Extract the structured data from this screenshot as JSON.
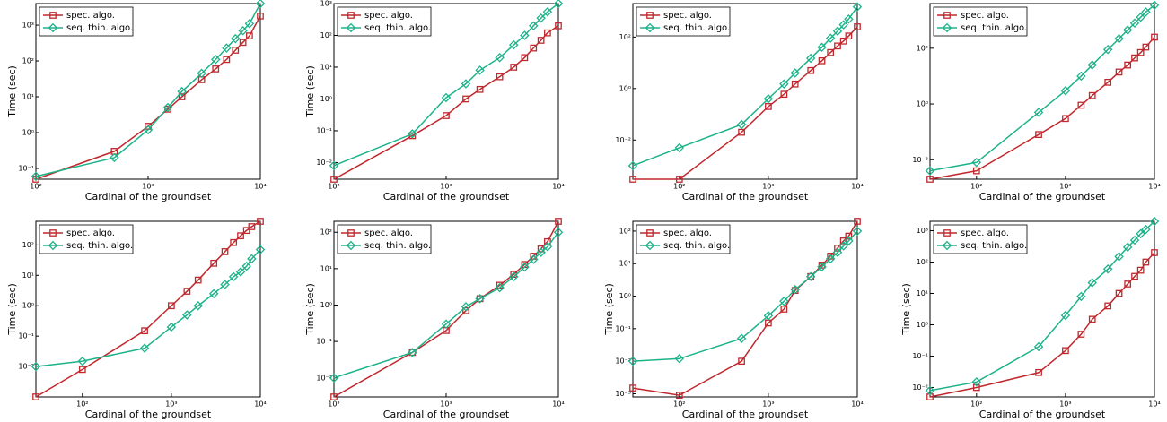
{
  "chart_data": [
    {
      "type": "line",
      "xscale": "log",
      "yscale": "log",
      "xlabel": "Cardinal of the groundset",
      "ylabel": "Time (sec)",
      "legend": "upper left",
      "x": [
        100,
        500,
        1000,
        1500,
        2000,
        3000,
        4000,
        5000,
        6000,
        7000,
        8000,
        10000
      ],
      "xlim": [
        100,
        10000
      ],
      "xticks": [
        {
          "value": 100,
          "label": "10²"
        },
        {
          "value": 1000,
          "label": "10³"
        },
        {
          "value": 10000,
          "label": "10⁴"
        }
      ],
      "ylim": [
        0.05,
        4000
      ],
      "yticks": [
        {
          "value": 0.1,
          "label": "10⁻¹"
        },
        {
          "value": 1,
          "label": "10⁰"
        },
        {
          "value": 10,
          "label": "10¹"
        },
        {
          "value": 100,
          "label": "10²"
        },
        {
          "value": 1000,
          "label": "10³"
        }
      ],
      "series": [
        {
          "name": "spec. algo.",
          "color": "#c0282d",
          "marker": "square",
          "values": [
            0.05,
            0.3,
            1.5,
            4.5,
            10,
            30,
            60,
            110,
            200,
            330,
            500,
            1800
          ]
        },
        {
          "name": "seq. thin. algo.",
          "color": "#1db38a",
          "marker": "diamond",
          "values": [
            0.06,
            0.2,
            1.2,
            5,
            14,
            45,
            110,
            230,
            420,
            700,
            1100,
            4000
          ]
        }
      ]
    },
    {
      "type": "line",
      "xscale": "log",
      "yscale": "log",
      "xlabel": "Cardinal of the groundset",
      "ylabel": "Time (sec)",
      "legend": "upper left",
      "x": [
        100,
        500,
        1000,
        1500,
        2000,
        3000,
        4000,
        5000,
        6000,
        7000,
        8000,
        10000
      ],
      "xlim": [
        100,
        10000
      ],
      "xticks": [
        {
          "value": 100,
          "label": "10²"
        },
        {
          "value": 1000,
          "label": "10³"
        },
        {
          "value": 10000,
          "label": "10⁴"
        }
      ],
      "ylim": [
        0.003,
        1000
      ],
      "yticks": [
        {
          "value": 0.01,
          "label": "10⁻²"
        },
        {
          "value": 0.1,
          "label": "10⁻¹"
        },
        {
          "value": 1,
          "label": "10⁰"
        },
        {
          "value": 10,
          "label": "10¹"
        },
        {
          "value": 100,
          "label": "10²"
        },
        {
          "value": 1000,
          "label": "10³"
        }
      ],
      "series": [
        {
          "name": "spec. algo.",
          "color": "#c0282d",
          "marker": "square",
          "values": [
            0.003,
            0.07,
            0.3,
            1,
            2,
            5,
            10,
            20,
            40,
            70,
            120,
            200
          ]
        },
        {
          "name": "seq. thin. algo.",
          "color": "#1db38a",
          "marker": "diamond",
          "values": [
            0.008,
            0.08,
            1.1,
            3,
            8,
            20,
            50,
            100,
            200,
            350,
            550,
            1000
          ]
        }
      ]
    },
    {
      "type": "line",
      "xscale": "log",
      "yscale": "log",
      "xlabel": "Cardinal of the groundset",
      "legend": "upper left",
      "x": [
        30,
        100,
        500,
        1000,
        1500,
        2000,
        3000,
        4000,
        5000,
        6000,
        7000,
        8000,
        10000
      ],
      "xlim": [
        30,
        10000
      ],
      "xticks": [
        {
          "value": 100,
          "label": "10²"
        },
        {
          "value": 1000,
          "label": "10³"
        },
        {
          "value": 10000,
          "label": "10⁴"
        }
      ],
      "ylim": [
        0.0003,
        2000
      ],
      "yticks": [
        {
          "value": 0.01,
          "label": "10⁻²"
        },
        {
          "value": 1,
          "label": "10⁰"
        },
        {
          "value": 100,
          "label": "10²"
        }
      ],
      "series": [
        {
          "name": "spec. algo.",
          "color": "#c0282d",
          "marker": "square",
          "values": [
            0.0003,
            0.0003,
            0.02,
            0.2,
            0.6,
            1.5,
            5,
            12,
            25,
            45,
            70,
            110,
            250
          ]
        },
        {
          "name": "seq. thin. algo.",
          "color": "#1db38a",
          "marker": "diamond",
          "values": [
            0.001,
            0.005,
            0.04,
            0.4,
            1.5,
            4,
            15,
            40,
            90,
            170,
            300,
            500,
            1500
          ]
        }
      ]
    },
    {
      "type": "line",
      "xscale": "log",
      "yscale": "log",
      "xlabel": "Cardinal of the groundset",
      "legend": "upper left",
      "x": [
        30,
        100,
        500,
        1000,
        1500,
        2000,
        3000,
        4000,
        5000,
        6000,
        7000,
        8000,
        10000
      ],
      "xlim": [
        30,
        10000
      ],
      "xticks": [
        {
          "value": 100,
          "label": "10²"
        },
        {
          "value": 1000,
          "label": "10³"
        },
        {
          "value": 10000,
          "label": "10⁴"
        }
      ],
      "ylim": [
        0.002,
        4000
      ],
      "yticks": [
        {
          "value": 0.01,
          "label": "10⁻²"
        },
        {
          "value": 1,
          "label": "10⁰"
        },
        {
          "value": 100,
          "label": "10²"
        }
      ],
      "series": [
        {
          "name": "spec. algo.",
          "color": "#c0282d",
          "marker": "square",
          "values": [
            0.002,
            0.004,
            0.08,
            0.3,
            0.9,
            2,
            6,
            14,
            25,
            45,
            70,
            110,
            250
          ]
        },
        {
          "name": "seq. thin. algo.",
          "color": "#1db38a",
          "marker": "diamond",
          "values": [
            0.004,
            0.008,
            0.5,
            3,
            10,
            25,
            90,
            220,
            450,
            800,
            1300,
            2000,
            3500
          ]
        }
      ]
    },
    {
      "type": "line",
      "xscale": "log",
      "yscale": "log",
      "xlabel": "Cardinal of the groundset",
      "ylabel": "Time (sec)",
      "legend": "upper left",
      "x": [
        30,
        100,
        500,
        1000,
        1500,
        2000,
        3000,
        4000,
        5000,
        6000,
        7000,
        8000,
        10000
      ],
      "xlim": [
        30,
        10000
      ],
      "xticks": [
        {
          "value": 100,
          "label": "10²"
        },
        {
          "value": 1000,
          "label": "10³"
        },
        {
          "value": 10000,
          "label": "10⁴"
        }
      ],
      "ylim": [
        0.001,
        600
      ],
      "yticks": [
        {
          "value": 0.01,
          "label": "10⁻²"
        },
        {
          "value": 0.1,
          "label": "10⁻¹"
        },
        {
          "value": 1,
          "label": "10⁰"
        },
        {
          "value": 10,
          "label": "10¹"
        },
        {
          "value": 100,
          "label": "10²"
        }
      ],
      "series": [
        {
          "name": "spec. algo.",
          "color": "#c0282d",
          "marker": "square",
          "values": [
            0.001,
            0.008,
            0.15,
            1,
            3,
            7,
            25,
            60,
            120,
            200,
            300,
            400,
            600
          ]
        },
        {
          "name": "seq. thin. algo.",
          "color": "#1db38a",
          "marker": "diamond",
          "values": [
            0.01,
            0.015,
            0.04,
            0.2,
            0.5,
            1,
            2.5,
            5,
            9,
            13,
            20,
            35,
            70
          ]
        }
      ]
    },
    {
      "type": "line",
      "xscale": "log",
      "yscale": "log",
      "xlabel": "Cardinal of the groundset",
      "ylabel": "Time (sec)",
      "legend": "upper left",
      "x": [
        100,
        500,
        1000,
        1500,
        2000,
        3000,
        4000,
        5000,
        6000,
        7000,
        8000,
        10000
      ],
      "xlim": [
        100,
        10000
      ],
      "xticks": [
        {
          "value": 100,
          "label": "10²"
        },
        {
          "value": 1000,
          "label": "10³"
        },
        {
          "value": 10000,
          "label": "10⁴"
        }
      ],
      "ylim": [
        0.003,
        200
      ],
      "yticks": [
        {
          "value": 0.01,
          "label": "10⁻²"
        },
        {
          "value": 0.1,
          "label": "10⁻¹"
        },
        {
          "value": 1,
          "label": "10⁰"
        },
        {
          "value": 10,
          "label": "10¹"
        },
        {
          "value": 100,
          "label": "10²"
        }
      ],
      "series": [
        {
          "name": "spec. algo.",
          "color": "#c0282d",
          "marker": "square",
          "values": [
            0.003,
            0.05,
            0.2,
            0.7,
            1.5,
            3.5,
            7,
            13,
            22,
            35,
            55,
            200
          ]
        },
        {
          "name": "seq. thin. algo.",
          "color": "#1db38a",
          "marker": "diamond",
          "values": [
            0.01,
            0.05,
            0.3,
            0.9,
            1.5,
            3,
            6,
            11,
            18,
            28,
            40,
            100
          ]
        }
      ]
    },
    {
      "type": "line",
      "xscale": "log",
      "yscale": "log",
      "xlabel": "Cardinal of the groundset",
      "ylabel": "Time (sec)",
      "legend": "upper left",
      "x": [
        30,
        100,
        500,
        1000,
        1500,
        2000,
        3000,
        4000,
        5000,
        6000,
        7000,
        8000,
        10000
      ],
      "xlim": [
        30,
        10000
      ],
      "xticks": [
        {
          "value": 100,
          "label": "10²"
        },
        {
          "value": 1000,
          "label": "10³"
        },
        {
          "value": 10000,
          "label": "10⁴"
        }
      ],
      "ylim": [
        0.0008,
        200
      ],
      "yticks": [
        {
          "value": 0.001,
          "label": "10⁻³"
        },
        {
          "value": 0.01,
          "label": "10⁻²"
        },
        {
          "value": 0.1,
          "label": "10⁻¹"
        },
        {
          "value": 1,
          "label": "10⁰"
        },
        {
          "value": 10,
          "label": "10¹"
        },
        {
          "value": 100,
          "label": "10²"
        }
      ],
      "series": [
        {
          "name": "spec. algo.",
          "color": "#c0282d",
          "marker": "square",
          "values": [
            0.0015,
            0.0009,
            0.01,
            0.15,
            0.4,
            1.5,
            4,
            9,
            17,
            30,
            50,
            70,
            200
          ]
        },
        {
          "name": "seq. thin. algo.",
          "color": "#1db38a",
          "marker": "diamond",
          "values": [
            0.01,
            0.012,
            0.05,
            0.25,
            0.7,
            1.6,
            4,
            8,
            14,
            22,
            35,
            50,
            100
          ]
        }
      ]
    },
    {
      "type": "line",
      "xscale": "log",
      "yscale": "log",
      "xlabel": "Cardinal of the groundset",
      "ylabel": "Time (sec)",
      "legend": "upper left",
      "x": [
        30,
        100,
        500,
        1000,
        1500,
        2000,
        3000,
        4000,
        5000,
        6000,
        7000,
        8000,
        10000
      ],
      "xlim": [
        30,
        10000
      ],
      "xticks": [
        {
          "value": 100,
          "label": "10²"
        },
        {
          "value": 1000,
          "label": "10³"
        },
        {
          "value": 10000,
          "label": "10⁴"
        }
      ],
      "ylim": [
        0.005,
        2000
      ],
      "yticks": [
        {
          "value": 0.01,
          "label": "10⁻²"
        },
        {
          "value": 0.1,
          "label": "10⁻¹"
        },
        {
          "value": 1,
          "label": "10⁰"
        },
        {
          "value": 10,
          "label": "10¹"
        },
        {
          "value": 100,
          "label": "10²"
        },
        {
          "value": 1000,
          "label": "10³"
        }
      ],
      "series": [
        {
          "name": "spec. algo.",
          "color": "#c0282d",
          "marker": "square",
          "values": [
            0.005,
            0.01,
            0.03,
            0.15,
            0.5,
            1.5,
            4,
            10,
            20,
            35,
            55,
            100,
            200
          ]
        },
        {
          "name": "seq. thin. algo.",
          "color": "#1db38a",
          "marker": "diamond",
          "values": [
            0.008,
            0.015,
            0.2,
            2,
            8,
            22,
            60,
            150,
            300,
            500,
            800,
            1100,
            2000
          ]
        }
      ]
    }
  ]
}
